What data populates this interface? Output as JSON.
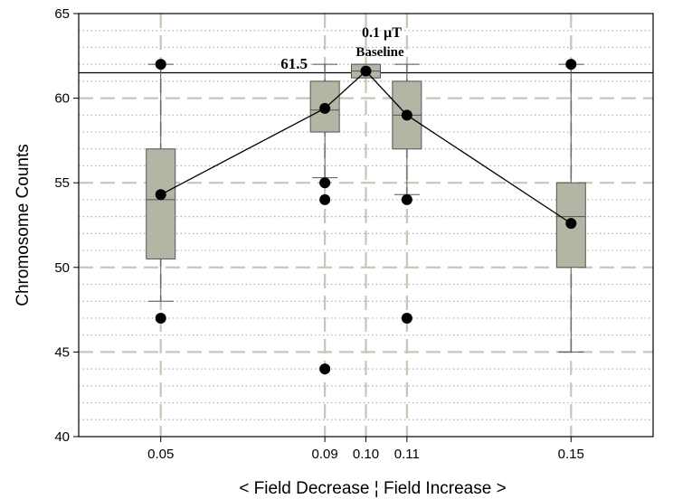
{
  "chart_data": {
    "type": "box",
    "title": "",
    "xlabel": "< Field Decrease ¦ Field Increase >",
    "ylabel": "Chromosome Counts",
    "xlim": [
      0.03,
      0.17
    ],
    "ylim": [
      40,
      65
    ],
    "x_ticks": [
      0.05,
      0.09,
      0.1,
      0.11,
      0.15
    ],
    "x_tick_labels": [
      "0.05",
      "0.09",
      "0.10",
      "0.11",
      "0.15"
    ],
    "y_ticks": [
      40,
      45,
      50,
      55,
      60,
      65
    ],
    "y_tick_labels": [
      "40",
      "45",
      "50",
      "55",
      "60",
      "65"
    ],
    "grid": {
      "major": "dashed",
      "minor": "dotted",
      "minor_step": 1
    },
    "reference_line": {
      "y": 61.5,
      "label": "61.5"
    },
    "annotation": {
      "line1": "0.1 µT",
      "line2": "Baseline",
      "x": 0.1
    },
    "boxes": [
      {
        "x": 0.05,
        "whisker_low": 48,
        "q1": 50.5,
        "median": 54,
        "q3": 57,
        "whisker_high": 62
      },
      {
        "x": 0.09,
        "whisker_low": 55.3,
        "q1": 58,
        "median": 59.3,
        "q3": 61,
        "whisker_high": 62
      },
      {
        "x": 0.1,
        "whisker_low": 61.2,
        "q1": 61.2,
        "median": 61.6,
        "q3": 62,
        "whisker_high": 62
      },
      {
        "x": 0.11,
        "whisker_low": 54.3,
        "q1": 57,
        "median": 59,
        "q3": 61,
        "whisker_high": 62
      },
      {
        "x": 0.15,
        "whisker_low": 45,
        "q1": 50,
        "median": 53,
        "q3": 55,
        "whisker_high": 62
      }
    ],
    "mean_line": [
      {
        "x": 0.05,
        "y": 54.3
      },
      {
        "x": 0.09,
        "y": 59.4
      },
      {
        "x": 0.1,
        "y": 61.6
      },
      {
        "x": 0.11,
        "y": 59.0
      },
      {
        "x": 0.15,
        "y": 52.6
      }
    ],
    "outliers": [
      {
        "x": 0.05,
        "y": 62
      },
      {
        "x": 0.05,
        "y": 47
      },
      {
        "x": 0.09,
        "y": 55
      },
      {
        "x": 0.09,
        "y": 54
      },
      {
        "x": 0.09,
        "y": 44
      },
      {
        "x": 0.11,
        "y": 54
      },
      {
        "x": 0.11,
        "y": 47
      },
      {
        "x": 0.15,
        "y": 62
      }
    ],
    "colors": {
      "box_fill": "#b5b5a6",
      "box_stroke": "#555555",
      "major_grid": "#c6c6b8",
      "minor_grid": "#b0b0b0",
      "points": "#000000",
      "lines": "#000000"
    }
  }
}
